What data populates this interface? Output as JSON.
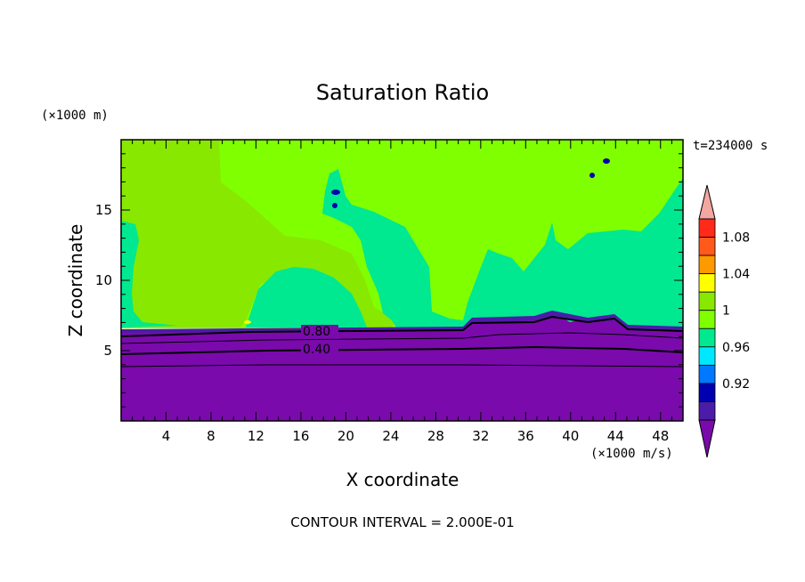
{
  "chart_data": {
    "type": "contour",
    "title": "Saturation Ratio",
    "xlabel": "X coordinate",
    "ylabel": "Z coordinate",
    "x_unit": "(×1000 m/s)",
    "y_unit": "(×1000 m)",
    "time_label": "t=234000 s",
    "footer": "CONTOUR INTERVAL = 2.000E-01",
    "xlim": [
      0,
      50
    ],
    "ylim": [
      0,
      20
    ],
    "x_ticks": [
      4,
      8,
      12,
      16,
      20,
      24,
      28,
      32,
      36,
      40,
      44,
      48
    ],
    "y_ticks": [
      5,
      10,
      15
    ],
    "contour_labels": [
      "0.80",
      "0.40"
    ],
    "colorbar": {
      "tick_labels": [
        "1.08",
        "1.04",
        "1",
        "0.96",
        "0.92"
      ],
      "levels": [
        {
          "range": "> 1.10",
          "color": "#f4a6a0"
        },
        {
          "range": "1.08-1.10",
          "color": "#ff2a1a"
        },
        {
          "range": "1.06-1.08",
          "color": "#ff5a1a"
        },
        {
          "range": "1.04-1.06",
          "color": "#ff9900"
        },
        {
          "range": "1.02-1.04",
          "color": "#ffff00"
        },
        {
          "range": "1.00-1.02",
          "color": "#88e800"
        },
        {
          "range": "0.98-1.00",
          "color": "#80ff00"
        },
        {
          "range": "0.96-0.98",
          "color": "#00e890"
        },
        {
          "range": "0.94-0.96",
          "color": "#00e8ff"
        },
        {
          "range": "0.92-0.94",
          "color": "#0078ff"
        },
        {
          "range": "0.90-0.92",
          "color": "#0000b0"
        },
        {
          "range": "0.88-0.90",
          "color": "#4b1ca8"
        },
        {
          "range": "< 0.88",
          "color": "#7a0aac"
        }
      ]
    }
  }
}
